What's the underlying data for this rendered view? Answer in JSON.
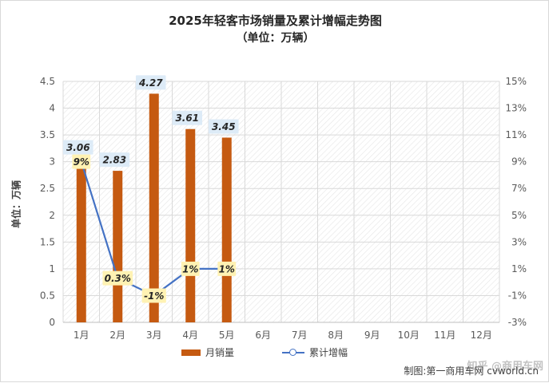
{
  "chart_data": {
    "type": "bar",
    "title": "2025年轻客市场销量及累计增幅走势图",
    "subtitle": "（单位：万辆）",
    "ylabel": "单位：万辆",
    "categories": [
      "1月",
      "2月",
      "3月",
      "4月",
      "5月",
      "6月",
      "7月",
      "8月",
      "9月",
      "10月",
      "11月",
      "12月"
    ],
    "series": [
      {
        "name": "月销量",
        "type": "bar",
        "axis": "left",
        "color": "#c55a11",
        "values": [
          3.06,
          2.83,
          4.27,
          3.61,
          3.45,
          null,
          null,
          null,
          null,
          null,
          null,
          null
        ],
        "labels": [
          "3.06",
          "2.83",
          "4.27",
          "3.61",
          "3.45"
        ]
      },
      {
        "name": "累计增幅",
        "type": "line",
        "axis": "right",
        "color": "#4472c4",
        "values": [
          9,
          0.3,
          -1,
          1,
          1,
          null,
          null,
          null,
          null,
          null,
          null,
          null
        ],
        "labels": [
          "9%",
          "0.3%",
          "-1%",
          "1%",
          "1%"
        ]
      }
    ],
    "y_left": {
      "min": 0,
      "max": 4.5,
      "ticks": [
        "0",
        "0.5",
        "1",
        "1.5",
        "2",
        "2.5",
        "3",
        "3.5",
        "4",
        "4.5"
      ]
    },
    "y_right": {
      "min": -3,
      "max": 15,
      "ticks": [
        "-3%",
        "-1%",
        "1%",
        "3%",
        "5%",
        "7%",
        "9%",
        "11%",
        "13%",
        "15%"
      ]
    },
    "grid": true,
    "legend_position": "bottom"
  },
  "credit": "制图:第一商用车网 cvworld.cn",
  "watermark": "知乎 @商用车网"
}
